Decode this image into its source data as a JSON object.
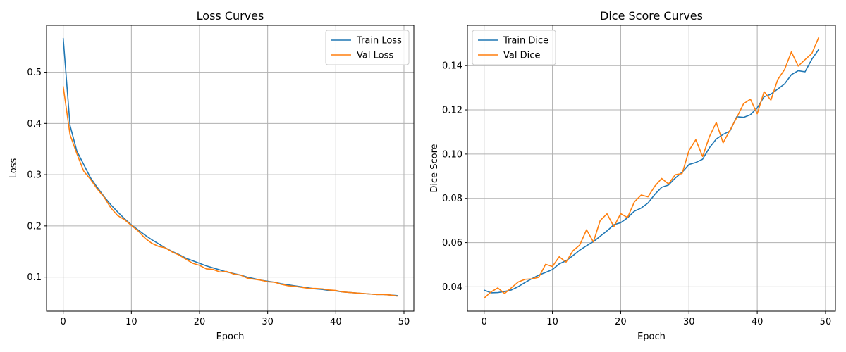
{
  "chart_data": [
    {
      "type": "line",
      "title": "Loss Curves",
      "xlabel": "Epoch",
      "ylabel": "Loss",
      "xlim": [
        -2.45,
        51.45
      ],
      "ylim": [
        0.0335,
        0.5915
      ],
      "xticks": [
        0,
        10,
        20,
        30,
        40,
        50
      ],
      "yticks": [
        0.1,
        0.2,
        0.3,
        0.4,
        0.5
      ],
      "ytick_labels": [
        "0.1",
        "0.2",
        "0.3",
        "0.4",
        "0.5"
      ],
      "grid": true,
      "legend_position": "top-right",
      "x": [
        0,
        1,
        2,
        3,
        4,
        5,
        6,
        7,
        8,
        9,
        10,
        11,
        12,
        13,
        14,
        15,
        16,
        17,
        18,
        19,
        20,
        21,
        22,
        23,
        24,
        25,
        26,
        27,
        28,
        29,
        30,
        31,
        32,
        33,
        34,
        35,
        36,
        37,
        38,
        39,
        40,
        41,
        42,
        43,
        44,
        45,
        46,
        47,
        48,
        49
      ],
      "series": [
        {
          "name": "Train Loss",
          "color": "#1f77b4",
          "values": [
            0.566,
            0.396,
            0.346,
            0.32,
            0.294,
            0.275,
            0.257,
            0.241,
            0.227,
            0.214,
            0.202,
            0.192,
            0.182,
            0.173,
            0.165,
            0.157,
            0.15,
            0.144,
            0.137,
            0.132,
            0.127,
            0.122,
            0.118,
            0.114,
            0.11,
            0.107,
            0.104,
            0.1,
            0.097,
            0.094,
            0.092,
            0.09,
            0.087,
            0.085,
            0.083,
            0.081,
            0.079,
            0.077,
            0.076,
            0.074,
            0.073,
            0.071,
            0.07,
            0.069,
            0.068,
            0.067,
            0.066,
            0.066,
            0.065,
            0.064
          ]
        },
        {
          "name": "Val Loss",
          "color": "#ff7f0e",
          "values": [
            0.472,
            0.378,
            0.341,
            0.307,
            0.291,
            0.272,
            0.256,
            0.235,
            0.22,
            0.212,
            0.201,
            0.19,
            0.176,
            0.166,
            0.16,
            0.157,
            0.149,
            0.143,
            0.135,
            0.127,
            0.123,
            0.116,
            0.115,
            0.11,
            0.111,
            0.106,
            0.104,
            0.098,
            0.096,
            0.094,
            0.091,
            0.09,
            0.086,
            0.083,
            0.082,
            0.08,
            0.078,
            0.078,
            0.077,
            0.075,
            0.074,
            0.071,
            0.07,
            0.069,
            0.068,
            0.067,
            0.066,
            0.066,
            0.065,
            0.063
          ]
        }
      ]
    },
    {
      "type": "line",
      "title": "Dice Score Curves",
      "xlabel": "Epoch",
      "ylabel": "Dice Score",
      "xlim": [
        -2.45,
        51.45
      ],
      "ylim": [
        0.029,
        0.1582
      ],
      "xticks": [
        0,
        10,
        20,
        30,
        40,
        50
      ],
      "yticks": [
        0.04,
        0.06,
        0.08,
        0.1,
        0.12,
        0.14
      ],
      "ytick_labels": [
        "0.04",
        "0.06",
        "0.08",
        "0.10",
        "0.12",
        "0.14"
      ],
      "grid": true,
      "legend_position": "top-left",
      "x": [
        0,
        1,
        2,
        3,
        4,
        5,
        6,
        7,
        8,
        9,
        10,
        11,
        12,
        13,
        14,
        15,
        16,
        17,
        18,
        19,
        20,
        21,
        22,
        23,
        24,
        25,
        26,
        27,
        28,
        29,
        30,
        31,
        32,
        33,
        34,
        35,
        36,
        37,
        38,
        39,
        40,
        41,
        42,
        43,
        44,
        45,
        46,
        47,
        48,
        49
      ],
      "series": [
        {
          "name": "Train Dice",
          "color": "#1f77b4",
          "values": [
            0.0385,
            0.0373,
            0.0374,
            0.0379,
            0.0386,
            0.0401,
            0.042,
            0.0437,
            0.0453,
            0.0465,
            0.0478,
            0.0504,
            0.0518,
            0.0541,
            0.0566,
            0.0586,
            0.0604,
            0.0629,
            0.0653,
            0.0681,
            0.069,
            0.0712,
            0.0742,
            0.0756,
            0.0779,
            0.0818,
            0.085,
            0.086,
            0.0892,
            0.0918,
            0.0953,
            0.0962,
            0.0977,
            0.1029,
            0.1068,
            0.1089,
            0.1104,
            0.1169,
            0.1166,
            0.1178,
            0.1209,
            0.1259,
            0.1271,
            0.1294,
            0.1317,
            0.1359,
            0.1377,
            0.1372,
            0.1429,
            0.1473
          ]
        },
        {
          "name": "Val Dice",
          "color": "#ff7f0e",
          "values": [
            0.0349,
            0.0377,
            0.0395,
            0.037,
            0.0396,
            0.0422,
            0.0434,
            0.0436,
            0.0443,
            0.0502,
            0.0492,
            0.0536,
            0.0512,
            0.0563,
            0.0589,
            0.0658,
            0.0603,
            0.07,
            0.073,
            0.0672,
            0.0731,
            0.0713,
            0.0784,
            0.0815,
            0.0807,
            0.0855,
            0.089,
            0.0865,
            0.0907,
            0.0912,
            0.1016,
            0.1065,
            0.0989,
            0.1079,
            0.1143,
            0.1051,
            0.1108,
            0.1165,
            0.1228,
            0.1248,
            0.1182,
            0.1282,
            0.1244,
            0.1337,
            0.1382,
            0.1462,
            0.1398,
            0.1427,
            0.1455,
            0.1527
          ]
        }
      ]
    }
  ]
}
